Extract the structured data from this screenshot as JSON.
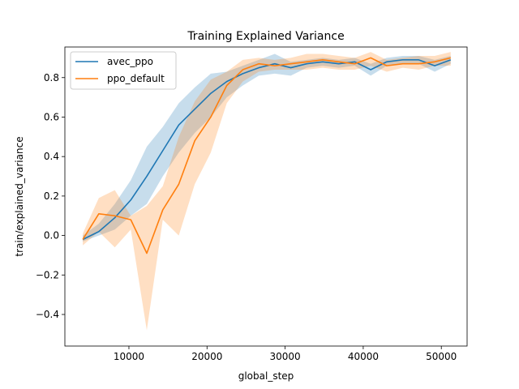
{
  "chart_data": {
    "type": "line",
    "title": "Training Explained Variance",
    "xlabel": "global_step",
    "ylabel": "train/explained_variance",
    "xlim": [
      1800,
      53300
    ],
    "ylim": [
      -0.56,
      0.955
    ],
    "xticks": [
      10000,
      20000,
      30000,
      40000,
      50000
    ],
    "xtick_labels": [
      "10000",
      "20000",
      "30000",
      "40000",
      "50000"
    ],
    "yticks": [
      -0.4,
      -0.2,
      0.0,
      0.2,
      0.4,
      0.6,
      0.8
    ],
    "ytick_labels": [
      "−0.4",
      "−0.2",
      "0.0",
      "0.2",
      "0.4",
      "0.6",
      "0.8"
    ],
    "grid": false,
    "legend_position": "top-left",
    "colors": {
      "avec_ppo": "#1f77b4",
      "ppo_default": "#ff7f0e"
    },
    "series": [
      {
        "name": "avec_ppo",
        "x": [
          4096,
          6144,
          8192,
          10240,
          12288,
          14336,
          16384,
          18432,
          20480,
          22528,
          24576,
          26624,
          28672,
          30720,
          32768,
          34816,
          36864,
          38912,
          40960,
          43008,
          45056,
          47104,
          49152,
          51200
        ],
        "values": [
          -0.02,
          0.02,
          0.09,
          0.18,
          0.3,
          0.43,
          0.56,
          0.64,
          0.72,
          0.78,
          0.82,
          0.85,
          0.87,
          0.85,
          0.87,
          0.88,
          0.87,
          0.88,
          0.84,
          0.88,
          0.89,
          0.89,
          0.86,
          0.89
        ],
        "lower": [
          -0.03,
          0.0,
          0.03,
          0.1,
          0.16,
          0.3,
          0.42,
          0.52,
          0.6,
          0.7,
          0.76,
          0.81,
          0.82,
          0.81,
          0.85,
          0.86,
          0.85,
          0.86,
          0.81,
          0.86,
          0.87,
          0.87,
          0.83,
          0.87
        ],
        "upper": [
          0.0,
          0.06,
          0.16,
          0.28,
          0.45,
          0.55,
          0.67,
          0.75,
          0.82,
          0.83,
          0.86,
          0.89,
          0.92,
          0.88,
          0.89,
          0.9,
          0.89,
          0.9,
          0.87,
          0.9,
          0.91,
          0.91,
          0.89,
          0.91
        ]
      },
      {
        "name": "ppo_default",
        "x": [
          4096,
          6144,
          8192,
          10240,
          12288,
          14336,
          16384,
          18432,
          20480,
          22528,
          24576,
          26624,
          28672,
          30720,
          32768,
          34816,
          36864,
          38912,
          40960,
          43008,
          45056,
          47104,
          49152,
          51200
        ],
        "values": [
          -0.02,
          0.11,
          0.1,
          0.08,
          -0.09,
          0.13,
          0.26,
          0.48,
          0.6,
          0.76,
          0.84,
          0.87,
          0.86,
          0.87,
          0.88,
          0.89,
          0.88,
          0.87,
          0.9,
          0.86,
          0.87,
          0.87,
          0.88,
          0.9
        ],
        "lower": [
          -0.05,
          0.02,
          -0.06,
          0.03,
          -0.48,
          0.08,
          0.0,
          0.26,
          0.42,
          0.67,
          0.78,
          0.83,
          0.84,
          0.84,
          0.84,
          0.85,
          0.84,
          0.84,
          0.86,
          0.83,
          0.85,
          0.84,
          0.86,
          0.86
        ],
        "upper": [
          0.01,
          0.19,
          0.23,
          0.1,
          0.15,
          0.25,
          0.5,
          0.68,
          0.79,
          0.83,
          0.89,
          0.9,
          0.89,
          0.9,
          0.92,
          0.92,
          0.91,
          0.9,
          0.93,
          0.89,
          0.9,
          0.91,
          0.91,
          0.93
        ]
      }
    ]
  }
}
